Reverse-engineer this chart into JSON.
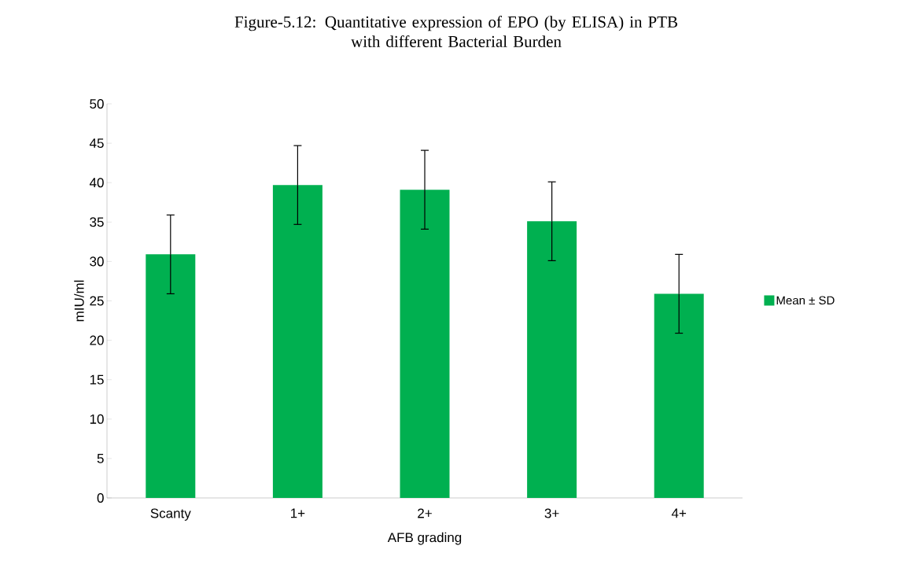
{
  "chart_data": {
    "type": "bar",
    "title": "Figure-5.12: Quantitative expression of  EPO (by ELISA) in PTB\nwith different Bacterial Burden",
    "xlabel": "AFB grading",
    "ylabel": "mIU/ml",
    "categories": [
      "Scanty",
      "1+",
      "2+",
      "3+",
      "4+"
    ],
    "series": [
      {
        "name": "Mean ± SD",
        "color": "#00b050",
        "values": [
          30.9,
          39.7,
          39.1,
          35.1,
          25.9
        ],
        "errors": [
          5,
          5,
          5,
          5,
          5
        ]
      }
    ],
    "ylim": [
      0,
      50
    ],
    "yticks": [
      0,
      5,
      10,
      15,
      20,
      25,
      30,
      35,
      40,
      45,
      50
    ],
    "grid": false,
    "legend": "right"
  }
}
